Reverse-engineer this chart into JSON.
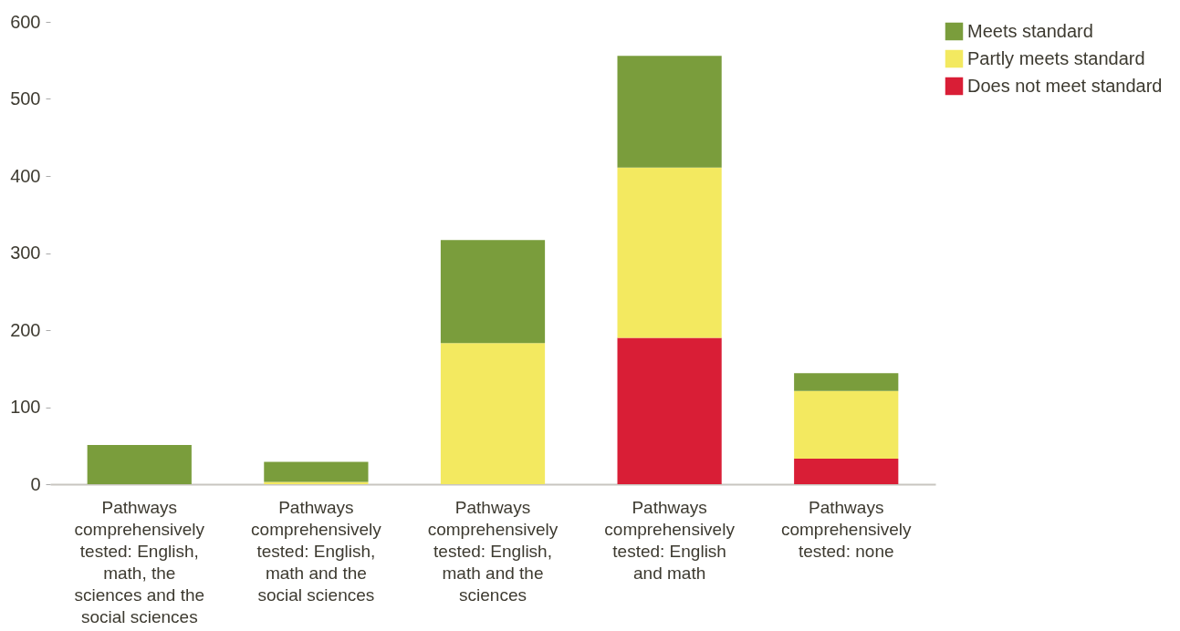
{
  "chart_data": {
    "type": "bar",
    "stacked": true,
    "categories": [
      "Pathways comprehensively tested: English, math, the sciences and the social sciences",
      "Pathways comprehensively tested: English, math and the social sciences",
      "Pathways comprehensively tested: English, math and the sciences",
      "Pathways comprehensively tested: English and math",
      "Pathways comprehensively tested: none"
    ],
    "series": [
      {
        "name": "Does not meet standard",
        "color": "#d91e36",
        "values": [
          0,
          0,
          0,
          190,
          33
        ]
      },
      {
        "name": "Partly meets standard",
        "color": "#f3e960",
        "values": [
          0,
          3,
          183,
          221,
          88
        ]
      },
      {
        "name": "Meets standard",
        "color": "#7a9d3c",
        "values": [
          51,
          26,
          134,
          145,
          23
        ]
      }
    ],
    "ylim": [
      0,
      600
    ],
    "yticks": [
      0,
      100,
      200,
      300,
      400,
      500,
      600
    ],
    "grid": false,
    "legend": "right"
  }
}
